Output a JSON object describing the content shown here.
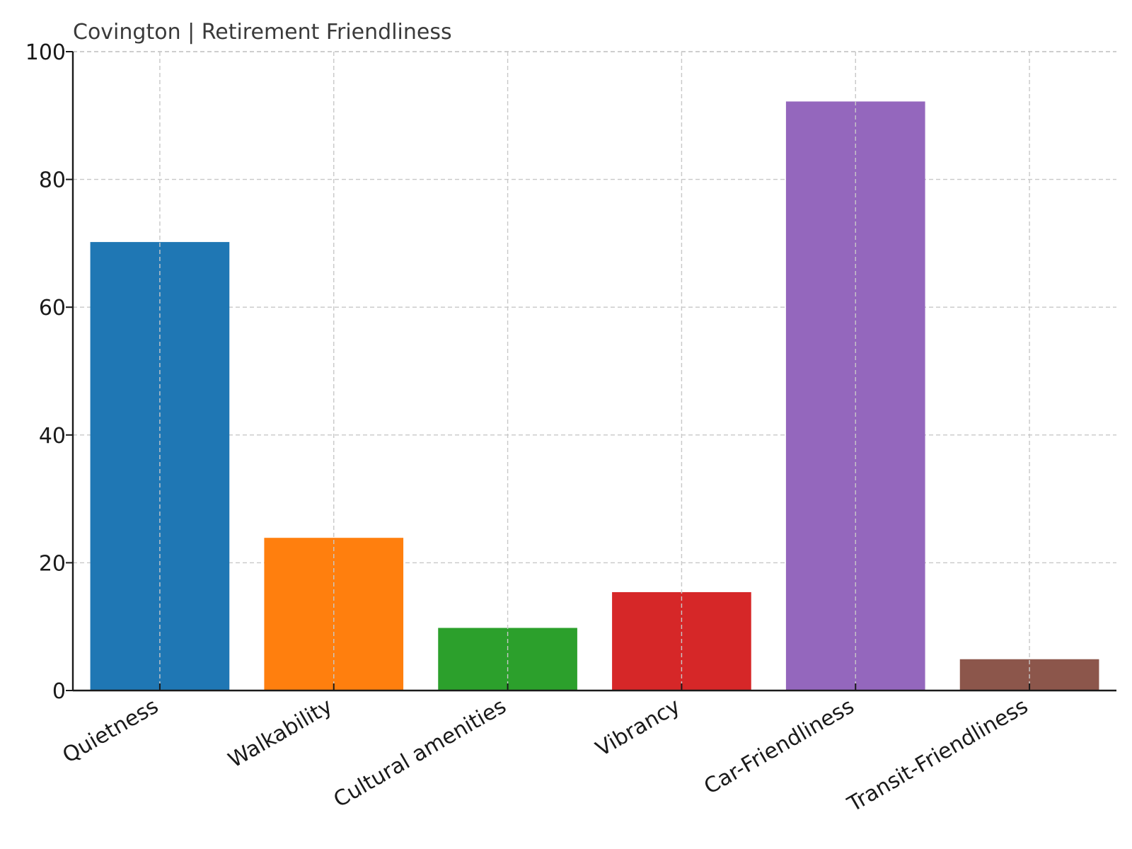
{
  "chart_data": {
    "type": "bar",
    "title": "Covington | Retirement Friendliness",
    "xlabel": "",
    "ylabel": "",
    "categories": [
      "Quietness",
      "Walkability",
      "Cultural amenities",
      "Vibrancy",
      "Car-Friendliness",
      "Transit-Friendliness"
    ],
    "values": [
      70.2,
      23.9,
      9.8,
      15.4,
      92.2,
      4.9
    ],
    "colors": [
      "#1f77b4",
      "#ff7f0e",
      "#2ca02c",
      "#d62728",
      "#9467bd",
      "#8c564b"
    ],
    "ylim": [
      0,
      100
    ],
    "yticks": [
      0,
      20,
      40,
      60,
      80,
      100
    ],
    "grid": true,
    "legend": "none"
  }
}
